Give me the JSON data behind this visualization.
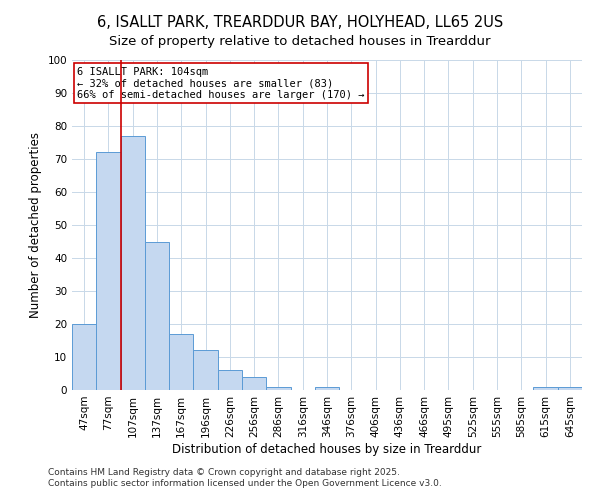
{
  "title_line1": "6, ISALLT PARK, TREARDDUR BAY, HOLYHEAD, LL65 2US",
  "title_line2": "Size of property relative to detached houses in Trearddur",
  "xlabel": "Distribution of detached houses by size in Trearddur",
  "ylabel": "Number of detached properties",
  "bar_labels": [
    "47sqm",
    "77sqm",
    "107sqm",
    "137sqm",
    "167sqm",
    "196sqm",
    "226sqm",
    "256sqm",
    "286sqm",
    "316sqm",
    "346sqm",
    "376sqm",
    "406sqm",
    "436sqm",
    "466sqm",
    "495sqm",
    "525sqm",
    "555sqm",
    "585sqm",
    "615sqm",
    "645sqm"
  ],
  "bar_values": [
    20,
    72,
    77,
    45,
    17,
    12,
    6,
    4,
    1,
    0,
    1,
    0,
    0,
    0,
    0,
    0,
    0,
    0,
    0,
    1,
    1
  ],
  "bar_color": "#c5d8f0",
  "bar_edge_color": "#5b9bd5",
  "vline_index": 2,
  "vline_color": "#cc0000",
  "annotation_text": "6 ISALLT PARK: 104sqm\n← 32% of detached houses are smaller (83)\n66% of semi-detached houses are larger (170) →",
  "annotation_box_edgecolor": "#cc0000",
  "annotation_box_facecolor": "#ffffff",
  "ylim": [
    0,
    100
  ],
  "yticks": [
    0,
    10,
    20,
    30,
    40,
    50,
    60,
    70,
    80,
    90,
    100
  ],
  "footer_line1": "Contains HM Land Registry data © Crown copyright and database right 2025.",
  "footer_line2": "Contains public sector information licensed under the Open Government Licence v3.0.",
  "background_color": "#ffffff",
  "grid_color": "#c8d8e8",
  "title_fontsize": 10.5,
  "subtitle_fontsize": 9.5,
  "axis_label_fontsize": 8.5,
  "tick_fontsize": 7.5,
  "annotation_fontsize": 7.5,
  "footer_fontsize": 6.5
}
